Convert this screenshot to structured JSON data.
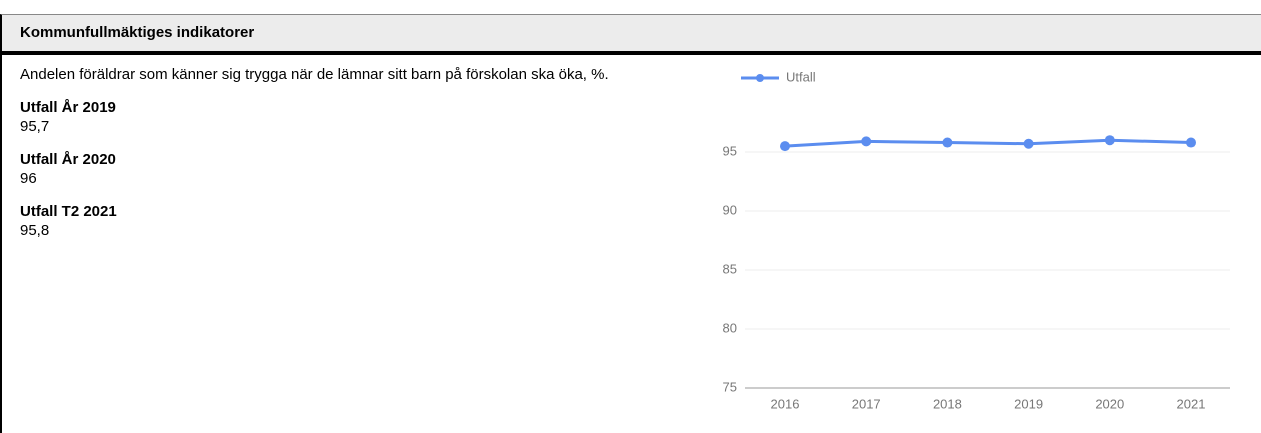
{
  "header": {
    "title": "Kommunfullmäktiges indikatorer"
  },
  "description": "Andelen föräldrar som känner sig trygga när de lämnar sitt barn på förskolan ska öka, %.",
  "items": [
    {
      "label": "Utfall År 2019",
      "value": "95,7"
    },
    {
      "label": "Utfall År 2020",
      "value": "96"
    },
    {
      "label": "Utfall T2 2021",
      "value": "95,8"
    }
  ],
  "chart_data": {
    "type": "line",
    "categories": [
      "2016",
      "2017",
      "2018",
      "2019",
      "2020",
      "2021"
    ],
    "series": [
      {
        "name": "Utfall",
        "color": "#5b8def",
        "values": [
          95.5,
          95.9,
          95.8,
          95.7,
          96,
          95.8
        ]
      }
    ],
    "ylim": [
      75,
      97
    ],
    "yticks": [
      75,
      80,
      85,
      90,
      95
    ],
    "grid": true,
    "legend": "top"
  }
}
